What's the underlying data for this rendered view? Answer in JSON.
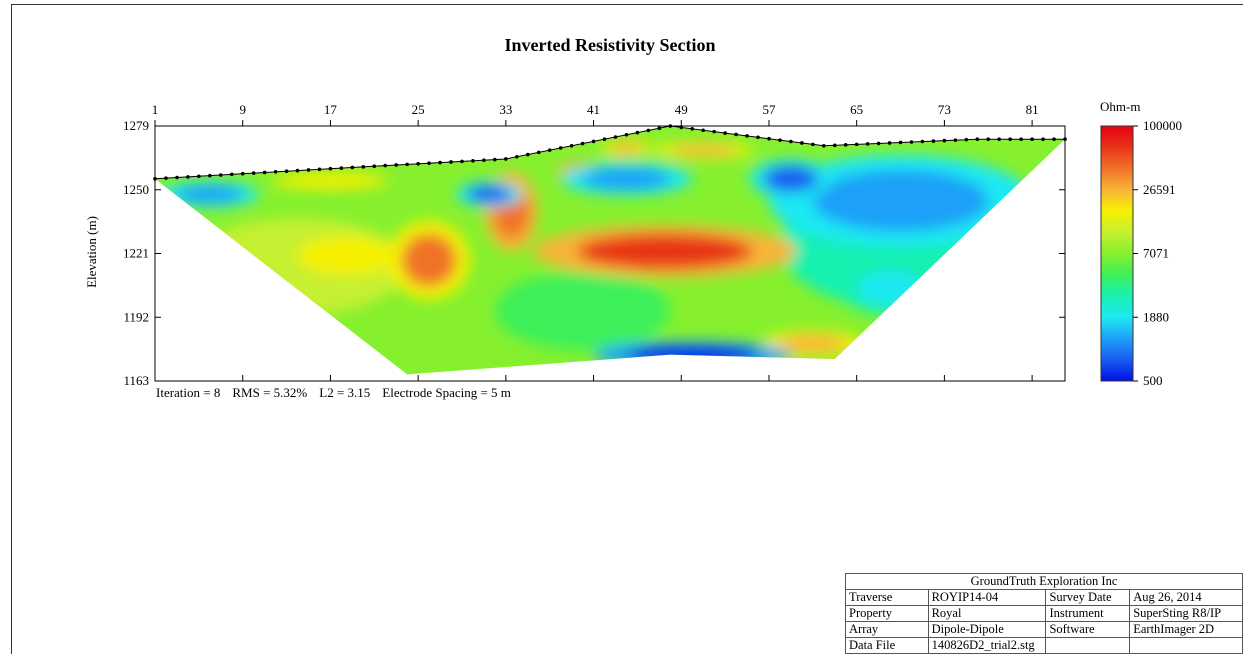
{
  "chart_data": {
    "type": "heatmap",
    "title": "Inverted Resistivity Section",
    "ylabel": "Elevation (m)",
    "xlabel": "",
    "x_ticks": [
      "1",
      "9",
      "17",
      "25",
      "33",
      "41",
      "49",
      "57",
      "65",
      "73",
      "81"
    ],
    "x_range": [
      1,
      84
    ],
    "y_ticks": [
      "1279",
      "1250",
      "1221",
      "1192",
      "1163"
    ],
    "ylim": [
      1163,
      1279
    ],
    "colorbar": {
      "title": "Ohm-m",
      "scale": "log",
      "range": [
        500,
        100000
      ],
      "tick_labels": [
        "100000",
        "26591",
        "7071",
        "1880",
        "500"
      ],
      "colors": [
        "#0010e8",
        "#1a5cf0",
        "#1fa0f8",
        "#1ee8f2",
        "#19f0b0",
        "#3ef05a",
        "#86f02e",
        "#c6f030",
        "#f6f000",
        "#f8b438",
        "#f07228",
        "#e83418",
        "#e80010"
      ]
    },
    "surface_electrodes": [
      {
        "x": 1,
        "elev": 1255
      },
      {
        "x": 22,
        "elev": 1261
      },
      {
        "x": 33,
        "elev": 1264
      },
      {
        "x": 48,
        "elev": 1279
      },
      {
        "x": 62,
        "elev": 1270
      },
      {
        "x": 76,
        "elev": 1273
      },
      {
        "x": 84,
        "elev": 1273
      }
    ],
    "section_bottom": [
      {
        "x": 1,
        "elev": 1255
      },
      {
        "x": 24,
        "elev": 1166
      },
      {
        "x": 48,
        "elev": 1175
      },
      {
        "x": 63,
        "elev": 1173
      },
      {
        "x": 84,
        "elev": 1273
      }
    ],
    "anomalies": [
      {
        "x": 47.5,
        "elev": 1222,
        "rx": 8,
        "ry": 8,
        "ohm": 60000
      },
      {
        "x": 26,
        "elev": 1218,
        "rx": 2.5,
        "ry": 12,
        "ohm": 35000
      },
      {
        "x": 33.5,
        "elev": 1240,
        "rx": 1.6,
        "ry": 12,
        "ohm": 40000
      },
      {
        "x": 40,
        "elev": 1258,
        "rx": 1.5,
        "ry": 3,
        "ohm": 80000
      },
      {
        "x": 18.5,
        "elev": 1220,
        "rx": 3,
        "ry": 6,
        "ohm": 20000
      },
      {
        "x": 17,
        "elev": 1254,
        "rx": 3.5,
        "ry": 2.5,
        "ohm": 20000
      },
      {
        "x": 51,
        "elev": 1268,
        "rx": 3,
        "ry": 2.5,
        "ohm": 25000
      },
      {
        "x": 44,
        "elev": 1269,
        "rx": 1.5,
        "ry": 2.5,
        "ohm": 28000
      },
      {
        "x": 61,
        "elev": 1180,
        "rx": 3,
        "ry": 4,
        "ohm": 25000
      },
      {
        "x": 69,
        "elev": 1245,
        "rx": 8,
        "ry": 14,
        "ohm": 1300
      },
      {
        "x": 59,
        "elev": 1255,
        "rx": 2.5,
        "ry": 6,
        "ohm": 900
      },
      {
        "x": 50,
        "elev": 1175,
        "rx": 6,
        "ry": 4,
        "ohm": 600
      },
      {
        "x": 31.5,
        "elev": 1248,
        "rx": 2,
        "ry": 4,
        "ohm": 900
      },
      {
        "x": 44,
        "elev": 1255,
        "rx": 4,
        "ry": 5,
        "ohm": 1500
      },
      {
        "x": 6,
        "elev": 1248,
        "rx": 3,
        "ry": 4,
        "ohm": 1500
      },
      {
        "x": 68,
        "elev": 1205,
        "rx": 3,
        "ry": 8,
        "ohm": 2200
      }
    ]
  },
  "stats": {
    "iteration": "Iteration = 8",
    "rms": "RMS = 5.32%",
    "l2": "L2 = 3.15",
    "spacing": "Electrode Spacing = 5 m"
  },
  "info_table": {
    "company": "GroundTruth Exploration Inc",
    "rows": [
      {
        "k1": "Traverse",
        "v1": "ROYIP14-04",
        "k2": "Survey Date",
        "v2": "Aug 26, 2014"
      },
      {
        "k1": "Property",
        "v1": "Royal",
        "k2": "Instrument",
        "v2": "SuperSting R8/IP"
      },
      {
        "k1": "Array",
        "v1": "Dipole-Dipole",
        "k2": "Software",
        "v2": "EarthImager 2D"
      },
      {
        "k1": "Data File",
        "v1": "140826D2_trial2.stg",
        "k2": "",
        "v2": ""
      }
    ]
  }
}
